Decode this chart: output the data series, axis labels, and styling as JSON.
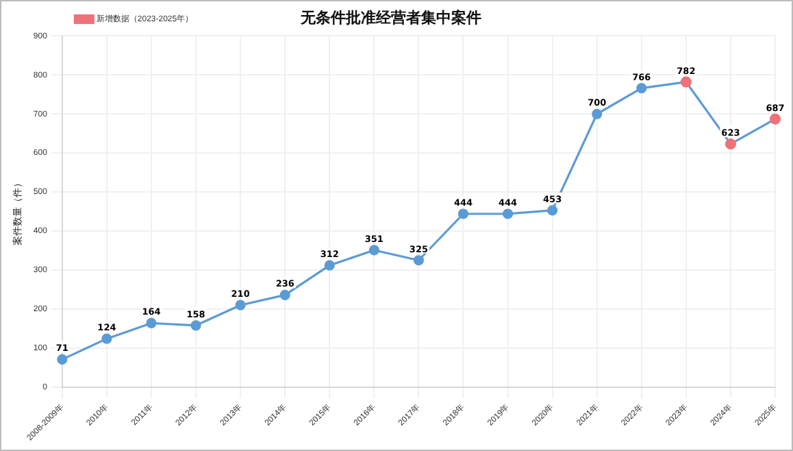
{
  "chart_data": {
    "type": "line",
    "title": "无条件批准经营者集中案件",
    "ylabel": "案件数量（件）",
    "categories": [
      "2008-2009年",
      "2010年",
      "2011年",
      "2012年",
      "2013年",
      "2014年",
      "2015年",
      "2016年",
      "2017年",
      "2018年",
      "2019年",
      "2020年",
      "2021年",
      "2022年",
      "2023年",
      "2024年",
      "2025年"
    ],
    "series": [
      {
        "color": "#5b9bd5",
        "values": [
          71,
          124,
          164,
          158,
          210,
          236,
          312,
          351,
          325,
          444,
          444,
          453,
          700,
          766,
          782,
          623,
          687
        ],
        "value_labels": [
          "71",
          "124",
          "164",
          "158",
          "210",
          "236",
          "312",
          "351",
          "325",
          "444",
          "444",
          "453",
          "700",
          "766",
          null,
          null,
          null
        ]
      },
      {
        "name": "新增数据（2023-2025年）",
        "type": "scatter",
        "color": "#f07178",
        "values": [
          null,
          null,
          null,
          null,
          null,
          null,
          null,
          null,
          null,
          null,
          null,
          null,
          null,
          null,
          782,
          623,
          687
        ],
        "value_labels": [
          null,
          null,
          null,
          null,
          null,
          null,
          null,
          null,
          null,
          null,
          null,
          null,
          null,
          null,
          "782",
          "623",
          "687"
        ]
      }
    ],
    "ylim": [
      0,
      900
    ],
    "yticks": [
      0,
      100,
      200,
      300,
      400,
      500,
      600,
      700,
      800,
      900
    ],
    "grid": true,
    "legend": "top left",
    "marker": "circle"
  }
}
